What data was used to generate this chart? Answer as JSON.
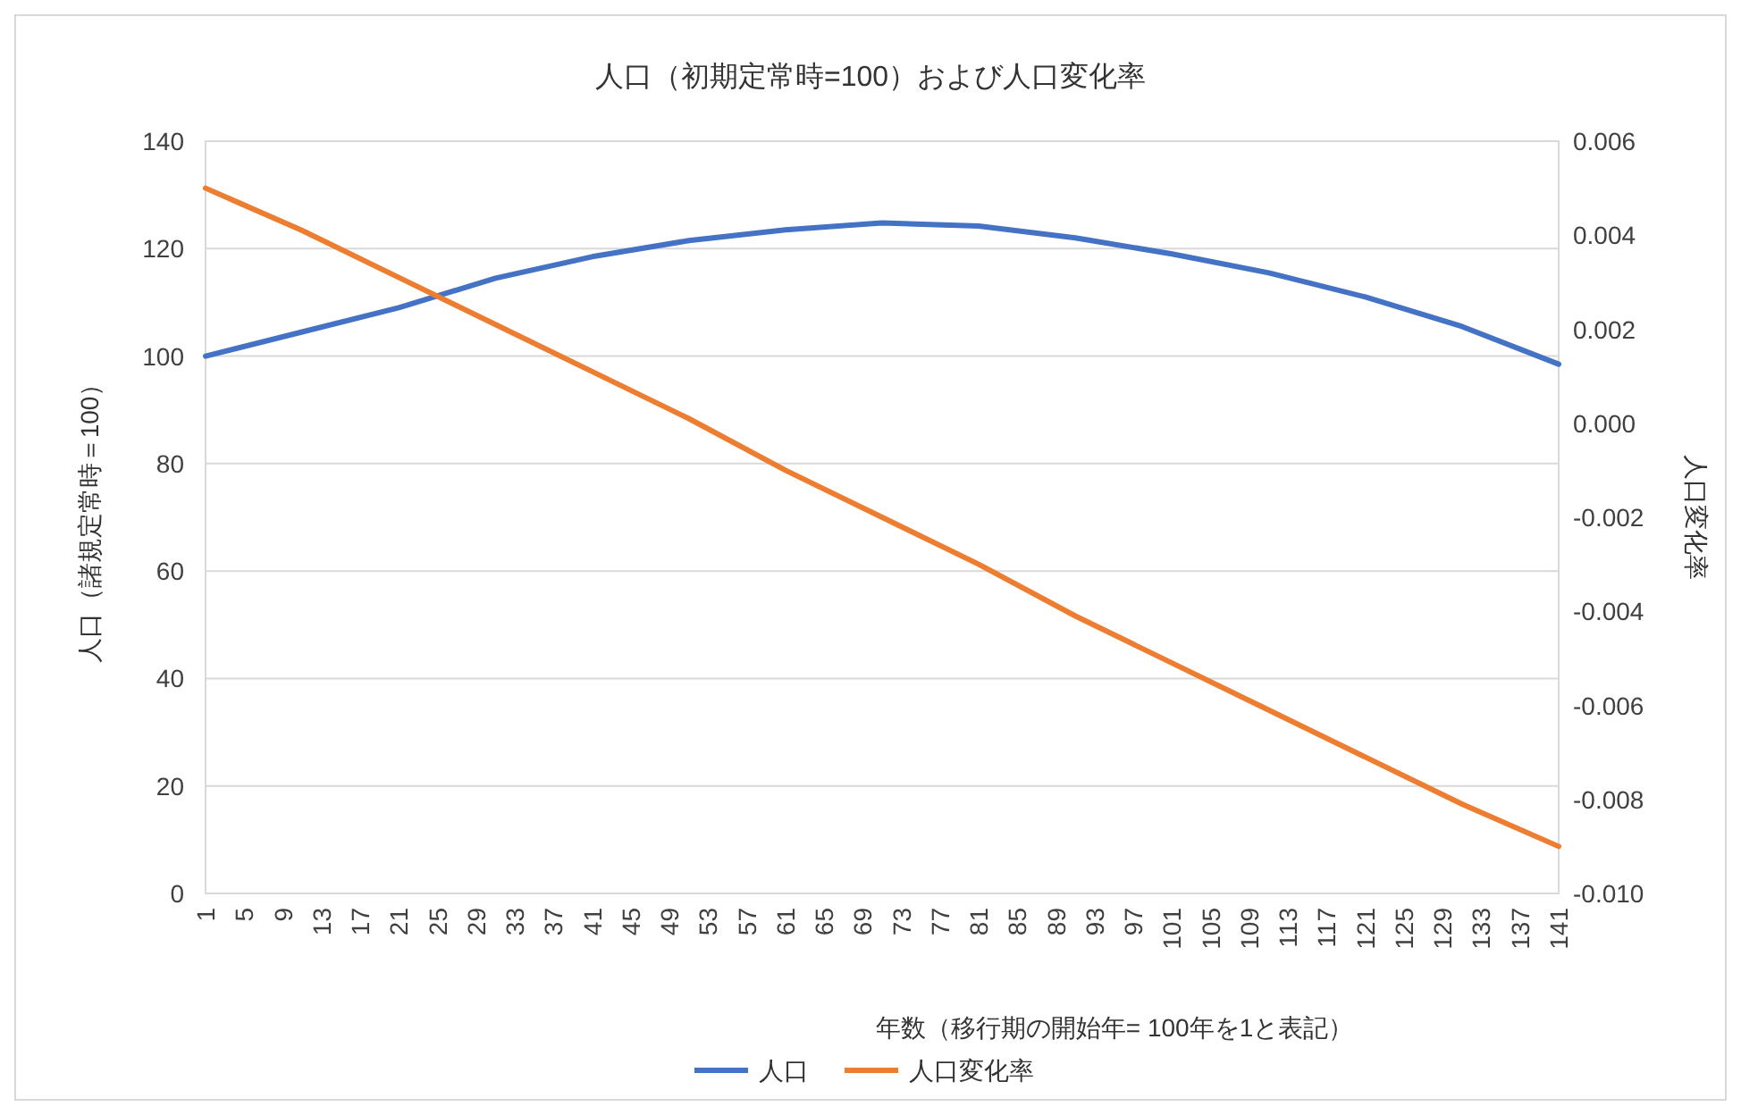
{
  "chart_data": {
    "type": "line",
    "title": "人口（初期定常時=100）および人口変化率",
    "xlabel": "年数（移行期の開始年= 100年を1と表記）",
    "ylabel": "人口（諸規定常時＝100）",
    "y2label": "人口変化率",
    "x": [
      1,
      11,
      21,
      31,
      41,
      51,
      61,
      71,
      81,
      91,
      101,
      111,
      121,
      131,
      141
    ],
    "series": [
      {
        "name": "人口",
        "color": "#4472c4",
        "values": [
          100,
          104.5,
          109,
          114.5,
          118.5,
          121.5,
          123.5,
          124.8,
          124.2,
          122,
          119,
          115.5,
          111,
          105.5,
          98.5
        ]
      },
      {
        "name": "人口変化率",
        "color": "#ed7d31",
        "axis": "y2",
        "values": [
          0.005,
          0.0041,
          0.0031,
          0.0021,
          0.0011,
          0.0001,
          -0.001,
          -0.002,
          -0.003,
          -0.0041,
          -0.0051,
          -0.0061,
          -0.0071,
          -0.0081,
          -0.009
        ]
      }
    ],
    "xlim": [
      1,
      141
    ],
    "xticks": [
      1,
      5,
      9,
      13,
      17,
      21,
      25,
      29,
      33,
      37,
      41,
      45,
      49,
      53,
      57,
      61,
      65,
      69,
      73,
      77,
      81,
      85,
      89,
      93,
      97,
      101,
      105,
      109,
      113,
      117,
      121,
      125,
      129,
      133,
      137,
      141
    ],
    "ylim": [
      0,
      140
    ],
    "yticks": [
      0,
      20,
      40,
      60,
      80,
      100,
      120,
      140
    ],
    "y2lim": [
      -0.01,
      0.006
    ],
    "y2ticks": [
      {
        "value": -0.01,
        "label": "-0.010"
      },
      {
        "value": -0.008,
        "label": "-0.008"
      },
      {
        "value": -0.006,
        "label": "-0.006"
      },
      {
        "value": -0.004,
        "label": "-0.004"
      },
      {
        "value": -0.002,
        "label": "-0.002"
      },
      {
        "value": 0,
        "label": "0.000"
      },
      {
        "value": 0.002,
        "label": "0.002"
      },
      {
        "value": 0.004,
        "label": "0.004"
      },
      {
        "value": 0.006,
        "label": "0.006"
      }
    ],
    "grid": "y",
    "legend": "bottom",
    "line_style": "solid"
  }
}
